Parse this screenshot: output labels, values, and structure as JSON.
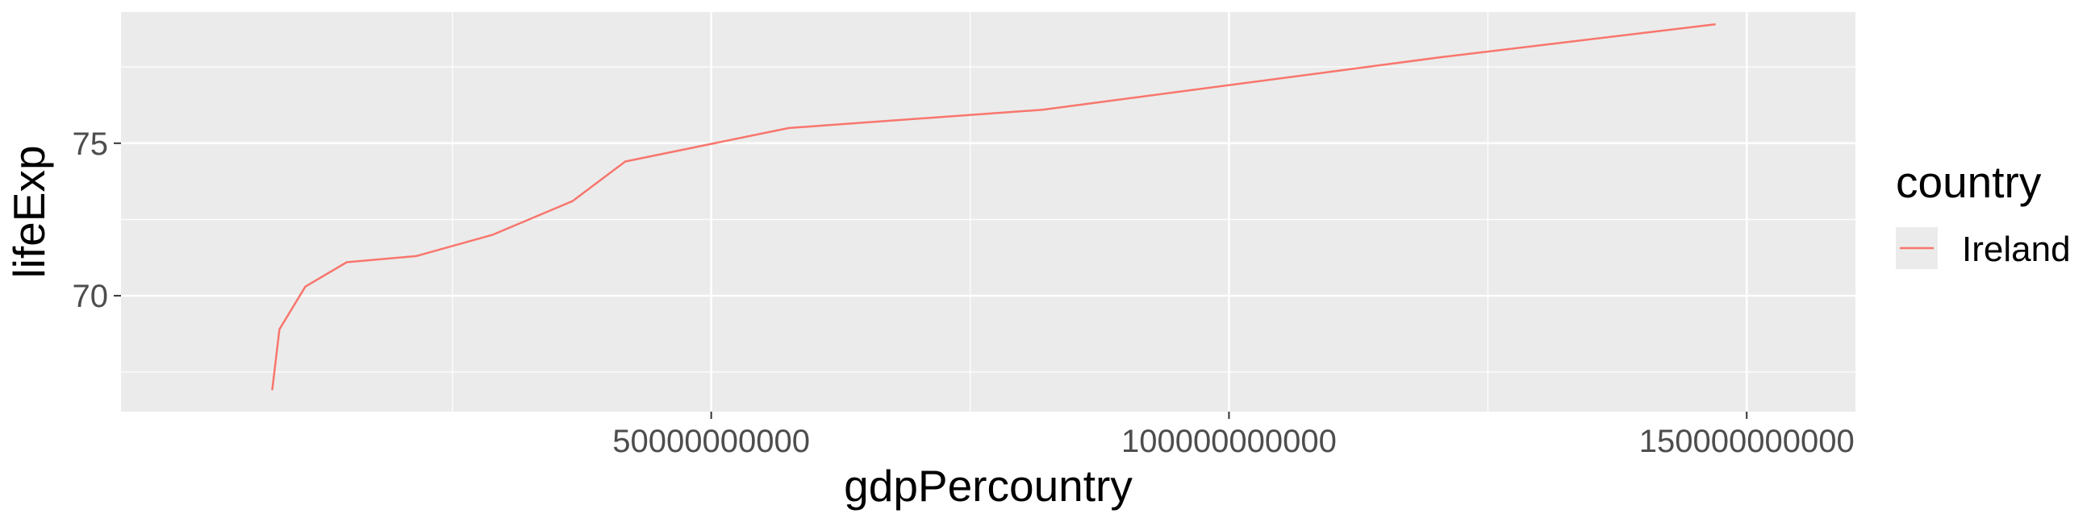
{
  "chart_data": {
    "type": "line",
    "xlabel": "gdpPercountry",
    "ylabel": "lifeExp",
    "xlim": [
      -7000000000,
      160500000000
    ],
    "ylim": [
      66.2,
      79.3
    ],
    "x_ticks": [
      50000000000,
      100000000000,
      150000000000
    ],
    "x_tick_labels": [
      "50000000000",
      "100000000000",
      "150000000000"
    ],
    "x_minor_ticks": [
      25000000000,
      75000000000,
      125000000000
    ],
    "y_ticks": [
      70,
      75
    ],
    "y_tick_labels": [
      "70",
      "75"
    ],
    "y_minor_ticks": [
      67.5,
      72.5,
      77.5
    ],
    "grid": true,
    "legend": {
      "title": "country",
      "position": "right"
    },
    "series": [
      {
        "name": "Ireland",
        "color": "#F8766D",
        "x": [
          7600000000,
          8300000000,
          10800000000,
          14800000000,
          21500000000,
          28900000000,
          36600000000,
          41700000000,
          57500000000,
          82000000000,
          120000000000,
          147000000000
        ],
        "y": [
          66.9,
          68.9,
          70.3,
          71.1,
          71.3,
          72.0,
          73.1,
          74.4,
          75.5,
          76.1,
          77.8,
          78.9
        ]
      }
    ]
  }
}
